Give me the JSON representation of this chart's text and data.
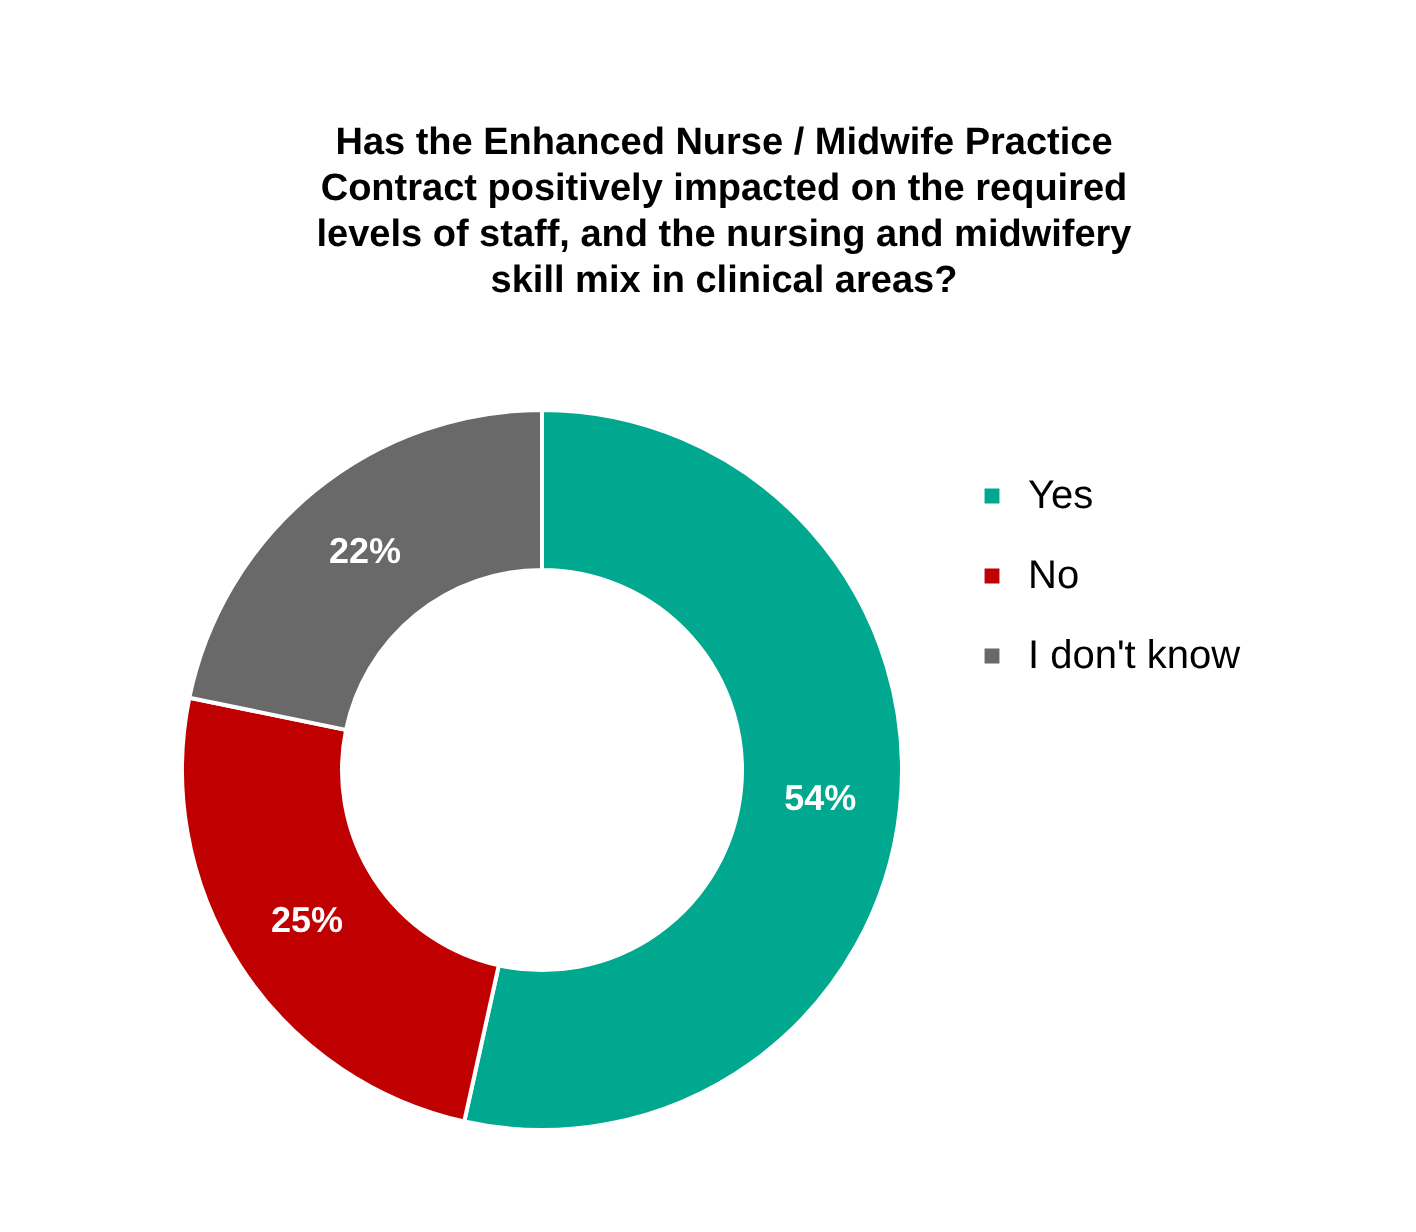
{
  "chart_data": {
    "type": "donut",
    "title": "Has the Enhanced Nurse / Midwife Practice Contract positively impacted on the required levels of staff, and the nursing and midwifery skill mix in clinical areas?",
    "categories": [
      "Yes",
      "No",
      "I don't know"
    ],
    "values": [
      54,
      25,
      22
    ],
    "colors": [
      "#00a88f",
      "#c00000",
      "#696969"
    ],
    "value_labels": [
      "54%",
      "25%",
      "22%"
    ],
    "legend": "right"
  }
}
